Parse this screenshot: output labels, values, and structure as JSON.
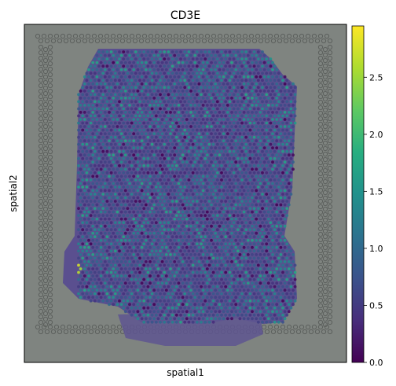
{
  "chart_data": {
    "type": "scatter",
    "title": "CD3E",
    "xlabel": "spatial1",
    "ylabel": "spatial2",
    "colorbar": {
      "colormap": "viridis",
      "min": 0.0,
      "max": 2.95,
      "ticks": [
        0.0,
        0.5,
        1.0,
        1.5,
        2.0,
        2.5
      ],
      "tick_labels": [
        "0.0",
        "0.5",
        "1.0",
        "1.5",
        "2.0",
        "2.5"
      ]
    },
    "background": "H&E tissue image with fiducial spot frame",
    "value_distribution": "mostly 0.0–1.0 (purple/blue), scattered 1.3–1.7 (teal/green), small bright cluster near 2.9 at lower-left",
    "grid": false,
    "legend": "colorbar right"
  },
  "colors": {
    "background_tissue": "#7f7f7f",
    "tissue": "#5b4f8c",
    "axis": "#000000"
  }
}
